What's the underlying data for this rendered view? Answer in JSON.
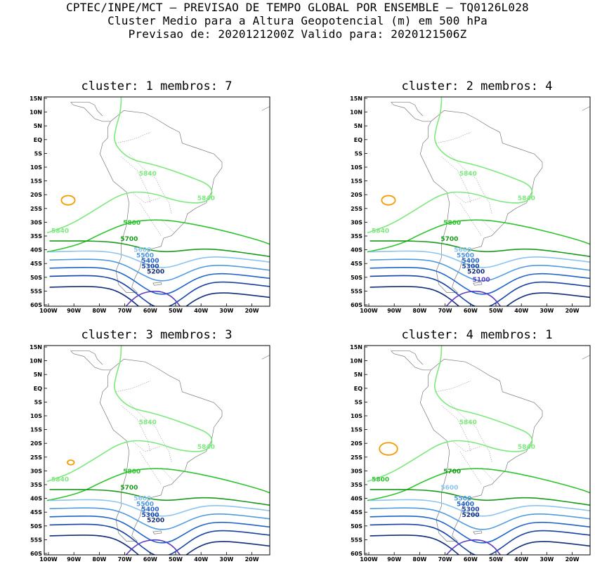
{
  "header": {
    "line1": "CPTEC/INPE/MCT — PREVISAO DE TEMPO GLOBAL POR ENSEMBLE — TQ0126L028",
    "line2": "Cluster Medio para a Altura Geopotencial (m) em 500 hPa",
    "line3": "Previsao de: 2020121200Z    Valido para: 2020121506Z"
  },
  "axes": {
    "lat_labels": [
      "15N",
      "10N",
      "5N",
      "EQ",
      "5S",
      "10S",
      "15S",
      "20S",
      "25S",
      "30S",
      "35S",
      "40S",
      "45S",
      "50S",
      "55S",
      "60S"
    ],
    "lon_labels": [
      "100W",
      "90W",
      "80W",
      "70W",
      "60W",
      "50W",
      "40W",
      "30W",
      "20W"
    ]
  },
  "colors": {
    "c5840": "#7ee87e",
    "c5800": "#2fc42f",
    "c5700": "#1a9a1a",
    "c5600": "#8cc4f0",
    "c5500": "#4f9ae0",
    "c5400": "#1f63c8",
    "c5300": "#1742a3",
    "c5200": "#0f2d7a",
    "c5100": "#5b3cc4",
    "orange": "#f59a00",
    "coast": "#7a7a7a"
  },
  "panels": [
    {
      "title": "cluster: 1   membros: 7",
      "labels": [
        "5840",
        "5840",
        "5840",
        "5800",
        "5700",
        "5600",
        "5500",
        "5400",
        "5300",
        "5200"
      ]
    },
    {
      "title": "cluster: 2   membros: 4",
      "labels": [
        "5840",
        "5840",
        "5840",
        "5800",
        "5700",
        "5600",
        "5500",
        "5400",
        "5300",
        "5200",
        "5100"
      ]
    },
    {
      "title": "cluster: 3   membros: 3",
      "labels": [
        "5840",
        "5840",
        "5840",
        "5800",
        "5700",
        "5600",
        "5500",
        "5400",
        "5300",
        "5200"
      ]
    },
    {
      "title": "cluster: 4   membros: 1",
      "labels": [
        "5840",
        "5840",
        "5800",
        "5700",
        "5600",
        "5500",
        "5400",
        "5300",
        "5200"
      ]
    }
  ]
}
